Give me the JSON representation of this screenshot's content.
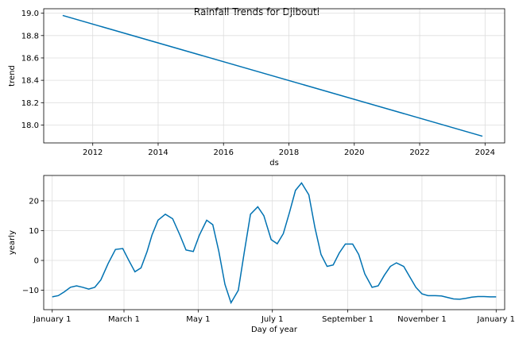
{
  "figure": {
    "title": "Rainfall Trends for Djibouti"
  },
  "chart_data": [
    {
      "type": "line",
      "title": "",
      "xlabel": "ds",
      "ylabel": "trend",
      "x": [
        2011.08,
        2023.92
      ],
      "series": [
        {
          "values": [
            18.98,
            17.9
          ]
        }
      ],
      "xlim": [
        2010.5,
        2024.6
      ],
      "ylim": [
        17.84,
        19.04
      ],
      "xticks": [
        2012,
        2014,
        2016,
        2018,
        2020,
        2022,
        2024
      ],
      "xtick_labels": [
        "2012",
        "2014",
        "2016",
        "2018",
        "2020",
        "2022",
        "2024"
      ],
      "yticks": [
        18.0,
        18.2,
        18.4,
        18.6,
        18.8,
        19.0
      ],
      "ytick_labels": [
        "18.0",
        "18.2",
        "18.4",
        "18.6",
        "18.8",
        "19.0"
      ],
      "grid": true,
      "color": "#0072b2"
    },
    {
      "type": "line",
      "title": "",
      "xlabel": "Day of year",
      "ylabel": "yearly",
      "x": [
        0,
        5,
        10,
        15,
        20,
        25,
        30,
        35,
        40,
        46,
        52,
        58,
        63,
        68,
        73,
        78,
        82,
        87,
        93,
        99,
        105,
        110,
        116,
        121,
        127,
        132,
        137,
        142,
        147,
        153,
        158,
        163,
        169,
        174,
        180,
        185,
        190,
        195,
        200,
        205,
        211,
        216,
        221,
        226,
        231,
        236,
        241,
        247,
        252,
        257,
        263,
        268,
        273,
        278,
        283,
        289,
        294,
        299,
        304,
        309,
        315,
        320,
        325,
        330,
        335,
        340,
        345,
        350,
        355,
        360,
        365
      ],
      "series": [
        {
          "values": [
            -12.2,
            -11.8,
            -10.5,
            -9.0,
            -8.5,
            -9.0,
            -9.6,
            -9.0,
            -6.5,
            -1.0,
            3.7,
            4.0,
            0.0,
            -3.8,
            -2.5,
            3.0,
            8.5,
            13.5,
            15.5,
            14.0,
            8.5,
            3.5,
            3.0,
            8.5,
            13.5,
            12.0,
            3.0,
            -8.0,
            -14.2,
            -10.0,
            3.0,
            15.5,
            18.0,
            15.0,
            7.0,
            5.6,
            9.0,
            16.0,
            23.5,
            26.0,
            22.0,
            11.0,
            2.0,
            -2.0,
            -1.5,
            2.5,
            5.5,
            5.5,
            2.0,
            -4.5,
            -9.0,
            -8.5,
            -5.0,
            -2.0,
            -0.8,
            -2.0,
            -5.5,
            -9.0,
            -11.2,
            -11.8,
            -11.8,
            -11.9,
            -12.4,
            -12.9,
            -13.0,
            -12.7,
            -12.3,
            -12.1,
            -12.1,
            -12.2,
            -12.2
          ]
        }
      ],
      "xlim": [
        -7,
        372
      ],
      "ylim": [
        -16.5,
        28.5
      ],
      "xticks": [
        0,
        59,
        120,
        181,
        243,
        304,
        365
      ],
      "xtick_labels": [
        "January 1",
        "March 1",
        "May 1",
        "July 1",
        "September 1",
        "November 1",
        "January 1"
      ],
      "yticks": [
        -10,
        0,
        10,
        20
      ],
      "ytick_labels": [
        "−10",
        "0",
        "10",
        "20"
      ],
      "grid": true,
      "color": "#0072b2"
    }
  ]
}
